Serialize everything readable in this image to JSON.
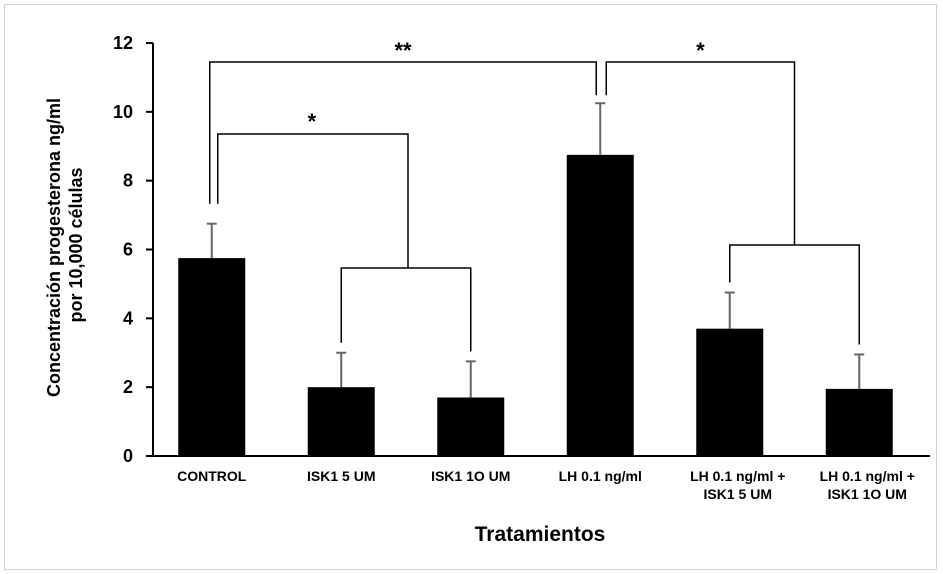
{
  "chart_data": {
    "type": "bar",
    "title": "",
    "xlabel": "Tratamientos",
    "ylabel": [
      "Concentración progesterona ng/ml",
      "por 10,000 células"
    ],
    "ylim": [
      0,
      12
    ],
    "yticks": [
      0,
      2,
      4,
      6,
      8,
      10,
      12
    ],
    "grid": false,
    "legend": "none",
    "bar_color": "#000000",
    "categories": [
      [
        "CONTROL"
      ],
      [
        "ISK1 5 UM"
      ],
      [
        "ISK1 1O UM"
      ],
      [
        "LH 0.1 ng/ml"
      ],
      [
        "LH 0.1 ng/ml +",
        "ISK1 5 UM"
      ],
      [
        "LH 0.1 ng/ml +",
        "ISK1 1O UM"
      ]
    ],
    "values": [
      5.75,
      2.0,
      1.7,
      8.75,
      3.7,
      1.95
    ],
    "errors": [
      1.0,
      1.0,
      1.05,
      1.5,
      1.05,
      1.0
    ],
    "annotations": [
      {
        "text": "**",
        "from": 0,
        "to": 3
      },
      {
        "text": "*",
        "from": 0,
        "to_group": [
          1,
          2
        ]
      },
      {
        "text": "*",
        "from": 3,
        "to_group": [
          4,
          5
        ]
      }
    ]
  }
}
